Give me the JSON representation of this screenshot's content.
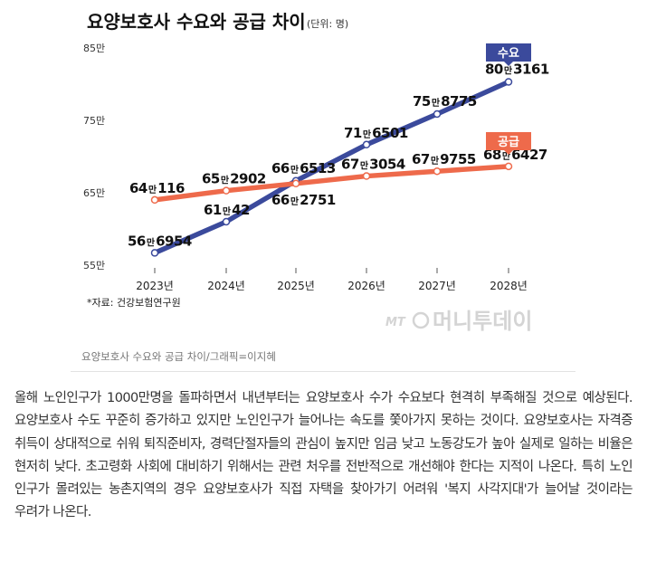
{
  "chart_data": {
    "type": "line",
    "title": "요양보호사 수요와 공급 차이",
    "unit": "(단위: 명)",
    "categories": [
      "2023년",
      "2024년",
      "2025년",
      "2026년",
      "2027년",
      "2028년"
    ],
    "ylim": [
      550000,
      850000
    ],
    "yticks": [
      {
        "value": 850000,
        "label": "85만"
      },
      {
        "value": 750000,
        "label": "75만"
      },
      {
        "value": 650000,
        "label": "65만"
      },
      {
        "value": 550000,
        "label": "55만"
      }
    ],
    "grid": false,
    "legend": "right",
    "series": [
      {
        "name": "수요",
        "color": "#3b4a9c",
        "values": [
          566954,
          610042,
          666513,
          716501,
          758775,
          803161
        ],
        "labels": [
          [
            "56",
            "만",
            "6954"
          ],
          [
            "61",
            "만",
            "42"
          ],
          [
            "66",
            "만",
            "6513"
          ],
          [
            "71",
            "만",
            "6501"
          ],
          [
            "75",
            "만",
            "8775"
          ],
          [
            "80",
            "만",
            "3161"
          ]
        ]
      },
      {
        "name": "공급",
        "color": "#ee6a4b",
        "values": [
          640116,
          652902,
          662751,
          673054,
          679755,
          686427
        ],
        "labels": [
          [
            "64",
            "만",
            "116"
          ],
          [
            "65",
            "만",
            "2902"
          ],
          [
            "66",
            "만",
            "2751"
          ],
          [
            "67",
            "만",
            "3054"
          ],
          [
            "67",
            "만",
            "9755"
          ],
          [
            "68",
            "만",
            "6427"
          ]
        ]
      }
    ],
    "source": "*자료: 건강보험연구원"
  },
  "watermark": {
    "mt": "MT",
    "name": "머니투데이"
  },
  "caption": "요양보호사 수요와 공급 차이/그래픽=이지혜",
  "article": "올해 노인인구가 1000만명을 돌파하면서 내년부터는 요양보호사 수가 수요보다 현격히 부족해질 것으로 예상된다. 요양보호사 수도 꾸준히 증가하고 있지만 노인인구가 늘어나는 속도를 쫓아가지 못하는 것이다. 요양보호사는 자격증 취득이 상대적으로 쉬워 퇴직준비자, 경력단절자들의 관심이 높지만 임금 낮고 노동강도가 높아 실제로 일하는 비율은 현저히 낮다. 초고령화 사회에 대비하기 위해서는 관련 처우를 전반적으로 개선해야 한다는 지적이 나온다. 특히 노인 인구가 몰려있는 농촌지역의 경우 요양보호사가 직접 자택을 찾아가기 어려워 '복지 사각지대'가 늘어날 것이라는 우려가 나온다."
}
